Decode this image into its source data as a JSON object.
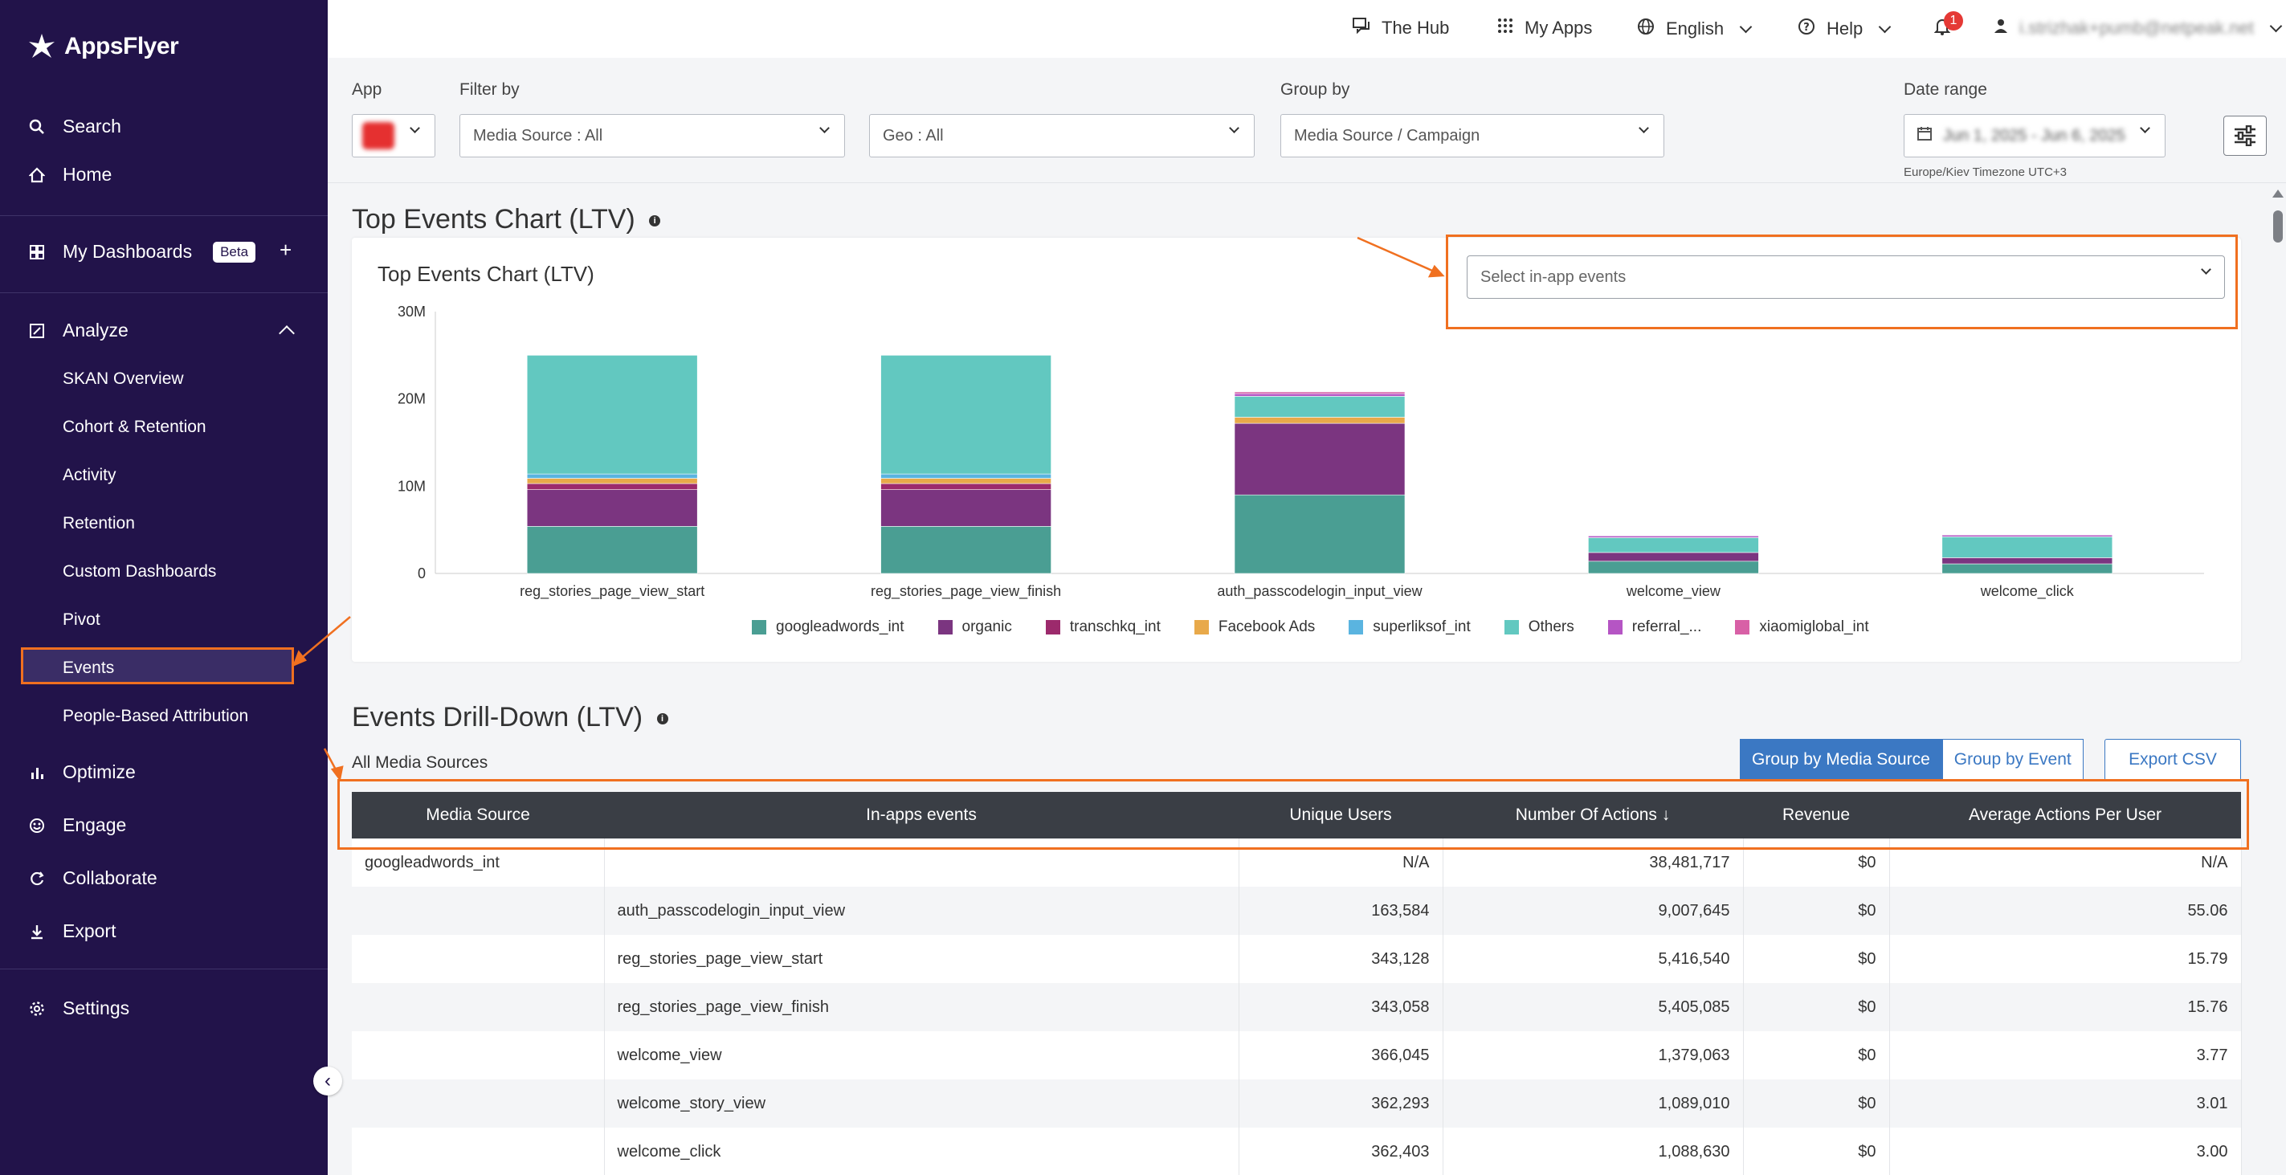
{
  "sidebar": {
    "brand": "AppsFlyer",
    "items": [
      {
        "label": "Search",
        "icon": "search-icon"
      },
      {
        "label": "Home",
        "icon": "home-icon"
      },
      {
        "label": "My Dashboards",
        "icon": "dashboard-icon",
        "badge": "Beta"
      },
      {
        "label": "Analyze",
        "icon": "analyze-icon"
      },
      {
        "label": "Optimize",
        "icon": "optimize-icon"
      },
      {
        "label": "Engage",
        "icon": "engage-icon"
      },
      {
        "label": "Collaborate",
        "icon": "collaborate-icon"
      },
      {
        "label": "Export",
        "icon": "export-icon"
      },
      {
        "label": "Settings",
        "icon": "settings-icon"
      }
    ],
    "analyze_sub": [
      "SKAN Overview",
      "Cohort & Retention",
      "Activity",
      "Retention",
      "Custom Dashboards",
      "Pivot",
      "Events",
      "People-Based Attribution"
    ],
    "plus": "+",
    "collapse": "‹"
  },
  "topbar": {
    "hub": "The Hub",
    "my_apps": "My Apps",
    "language": "English",
    "help": "Help",
    "notifications": "1",
    "user_email": "i.strizhak+pumb@netpeak.net"
  },
  "filters": {
    "app_label": "App",
    "filter_label": "Filter by",
    "media_source": "Media Source : All",
    "geo": "Geo : All",
    "group_label": "Group by",
    "group_value": "Media Source / Campaign",
    "date_label": "Date range",
    "date_value": "Jun 1, 2025 - Jun 6, 2025",
    "timezone": "Europe/Kiev Timezone UTC+3"
  },
  "chart_section": {
    "title": "Top Events Chart (LTV)",
    "info": "i",
    "card_title": "Top Events Chart (LTV)",
    "events_placeholder": "Select in-app events"
  },
  "chart_data": {
    "type": "bar",
    "stacked": true,
    "categories": [
      "reg_stories_page_view_start",
      "reg_stories_page_view_finish",
      "auth_passcodelogin_input_view",
      "welcome_view",
      "welcome_click"
    ],
    "ylim": [
      0,
      30000000
    ],
    "yticks": [
      "0",
      "10M",
      "20M",
      "30M"
    ],
    "ytick_values": [
      0,
      10000000,
      20000000,
      30000000
    ],
    "series": [
      {
        "name": "googleadwords_int",
        "color": "#4a9e93",
        "values": [
          5400000,
          5400000,
          9000000,
          1400000,
          1100000
        ]
      },
      {
        "name": "organic",
        "color": "#7b3580",
        "values": [
          4200000,
          4200000,
          8200000,
          1000000,
          700000
        ]
      },
      {
        "name": "transchkq_int",
        "color": "#9c2a6c",
        "values": [
          700000,
          700000,
          0,
          0,
          0
        ]
      },
      {
        "name": "Facebook Ads",
        "color": "#e8a94a",
        "values": [
          600000,
          600000,
          700000,
          0,
          0
        ]
      },
      {
        "name": "superliksof_int",
        "color": "#5ab4e0",
        "values": [
          500000,
          500000,
          0,
          0,
          0
        ]
      },
      {
        "name": "Others",
        "color": "#62c8c0",
        "values": [
          13600000,
          13600000,
          2400000,
          1700000,
          2400000
        ]
      },
      {
        "name": "referral_...",
        "color": "#b555c4",
        "values": [
          0,
          0,
          300000,
          200000,
          200000
        ]
      },
      {
        "name": "xiaomiglobal_int",
        "color": "#d860a6",
        "values": [
          0,
          0,
          200000,
          0,
          0
        ]
      }
    ]
  },
  "drill_section": {
    "title": "Events Drill-Down (LTV)",
    "info": "i",
    "sub_label": "All Media Sources",
    "btn_group_media": "Group by Media Source",
    "btn_group_event": "Group by Event",
    "btn_export": "Export CSV",
    "columns": [
      "Media Source",
      "In-apps events",
      "Unique Users",
      "Number Of Actions ↓",
      "Revenue",
      "Average Actions Per User"
    ],
    "rows": [
      {
        "media": "googleadwords_int",
        "event": "",
        "users": "N/A",
        "actions": "38,481,717",
        "revenue": "$0",
        "avg": "N/A"
      },
      {
        "media": "",
        "event": "auth_passcodelogin_input_view",
        "users": "163,584",
        "actions": "9,007,645",
        "revenue": "$0",
        "avg": "55.06"
      },
      {
        "media": "",
        "event": "reg_stories_page_view_start",
        "users": "343,128",
        "actions": "5,416,540",
        "revenue": "$0",
        "avg": "15.79"
      },
      {
        "media": "",
        "event": "reg_stories_page_view_finish",
        "users": "343,058",
        "actions": "5,405,085",
        "revenue": "$0",
        "avg": "15.76"
      },
      {
        "media": "",
        "event": "welcome_view",
        "users": "366,045",
        "actions": "1,379,063",
        "revenue": "$0",
        "avg": "3.77"
      },
      {
        "media": "",
        "event": "welcome_story_view",
        "users": "362,293",
        "actions": "1,089,010",
        "revenue": "$0",
        "avg": "3.01"
      },
      {
        "media": "",
        "event": "welcome_click",
        "users": "362,403",
        "actions": "1,088,630",
        "revenue": "$0",
        "avg": "3.00"
      }
    ]
  },
  "colors": {
    "sidebar_bg": "#22134a",
    "accent_orange": "#f07020",
    "primary_blue": "#3b78c3",
    "table_header": "#3a3e45"
  }
}
